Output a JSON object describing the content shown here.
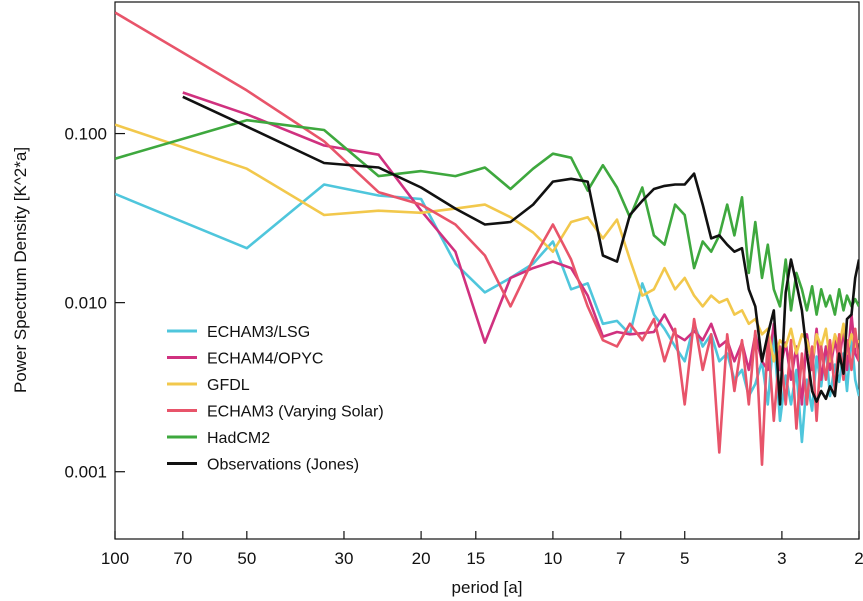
{
  "chart_data": {
    "type": "line",
    "title": "",
    "xlabel": "period [a]",
    "ylabel": "Power Spectrum Density [K^2*a]",
    "x_scale": "log",
    "x_reversed": true,
    "y_scale": "log",
    "xlim": [
      100,
      2
    ],
    "ylim": [
      0.0004,
      0.6
    ],
    "grid": false,
    "legend_position": "bottom-left",
    "x_ticks": [
      100,
      70,
      50,
      30,
      20,
      15,
      10,
      7,
      5,
      3,
      2
    ],
    "x_tick_labels": [
      "100",
      "70",
      "50",
      "30",
      "20",
      "15",
      "10",
      "7",
      "5",
      "3",
      "2"
    ],
    "y_ticks": [
      0.1,
      0.01,
      0.001
    ],
    "y_tick_labels": [
      "0.100",
      "0.010",
      "0.001"
    ],
    "series": [
      {
        "name": "ECHAM3/LSG",
        "color": "#4fc6dc",
        "points": [
          [
            100,
            0.044
          ],
          [
            50,
            0.021
          ],
          [
            33.3,
            0.05
          ],
          [
            25,
            0.043
          ],
          [
            20,
            0.041
          ],
          [
            16.7,
            0.017
          ],
          [
            14.3,
            0.0115
          ],
          [
            12.5,
            0.014
          ],
          [
            11.1,
            0.017
          ],
          [
            10,
            0.023
          ],
          [
            9.09,
            0.012
          ],
          [
            8.33,
            0.013
          ],
          [
            7.69,
            0.0075
          ],
          [
            7.14,
            0.0078
          ],
          [
            6.67,
            0.0065
          ],
          [
            6.25,
            0.013
          ],
          [
            5.88,
            0.0085
          ],
          [
            5.56,
            0.007
          ],
          [
            5.26,
            0.0055
          ],
          [
            5,
            0.0045
          ],
          [
            4.76,
            0.0075
          ],
          [
            4.55,
            0.0055
          ],
          [
            4.35,
            0.0065
          ],
          [
            4.17,
            0.0045
          ],
          [
            4,
            0.005
          ],
          [
            3.85,
            0.0035
          ],
          [
            3.7,
            0.004
          ],
          [
            3.57,
            0.0028
          ],
          [
            3.45,
            0.0033
          ],
          [
            3.33,
            0.0045
          ],
          [
            3.23,
            0.0025
          ],
          [
            3.13,
            0.0065
          ],
          [
            3.03,
            0.002
          ],
          [
            2.94,
            0.0037
          ],
          [
            2.86,
            0.0025
          ],
          [
            2.78,
            0.004
          ],
          [
            2.7,
            0.0015
          ],
          [
            2.63,
            0.0035
          ],
          [
            2.56,
            0.0023
          ],
          [
            2.5,
            0.0048
          ],
          [
            2.44,
            0.0032
          ],
          [
            2.38,
            0.0055
          ],
          [
            2.33,
            0.0028
          ],
          [
            2.27,
            0.0043
          ],
          [
            2.22,
            0.0034
          ],
          [
            2.17,
            0.005
          ],
          [
            2.13,
            0.003
          ],
          [
            2.08,
            0.0065
          ],
          [
            2.04,
            0.0035
          ],
          [
            2,
            0.0028
          ]
        ]
      },
      {
        "name": "ECHAM4/OPYC",
        "color": "#d0317f",
        "points": [
          [
            70,
            0.175
          ],
          [
            50,
            0.13
          ],
          [
            33.3,
            0.085
          ],
          [
            25,
            0.075
          ],
          [
            20,
            0.035
          ],
          [
            16.7,
            0.02
          ],
          [
            14.3,
            0.0058
          ],
          [
            12.5,
            0.014
          ],
          [
            11.1,
            0.016
          ],
          [
            10,
            0.0175
          ],
          [
            9.09,
            0.016
          ],
          [
            8.33,
            0.011
          ],
          [
            7.69,
            0.0063
          ],
          [
            7.14,
            0.0067
          ],
          [
            6.67,
            0.0065
          ],
          [
            6.25,
            0.0066
          ],
          [
            5.88,
            0.0067
          ],
          [
            5.56,
            0.0085
          ],
          [
            5.26,
            0.0065
          ],
          [
            5,
            0.006
          ],
          [
            4.76,
            0.0068
          ],
          [
            4.55,
            0.006
          ],
          [
            4.35,
            0.0075
          ],
          [
            4.17,
            0.0055
          ],
          [
            4,
            0.006
          ],
          [
            3.85,
            0.0045
          ],
          [
            3.7,
            0.0058
          ],
          [
            3.57,
            0.004
          ],
          [
            3.45,
            0.0065
          ],
          [
            3.33,
            0.0045
          ],
          [
            3.23,
            0.004
          ],
          [
            3.13,
            0.0075
          ],
          [
            3.03,
            0.004
          ],
          [
            2.94,
            0.0058
          ],
          [
            2.86,
            0.0035
          ],
          [
            2.78,
            0.0055
          ],
          [
            2.7,
            0.0025
          ],
          [
            2.63,
            0.0065
          ],
          [
            2.56,
            0.004
          ],
          [
            2.5,
            0.007
          ],
          [
            2.44,
            0.0035
          ],
          [
            2.38,
            0.0055
          ],
          [
            2.33,
            0.004
          ],
          [
            2.27,
            0.006
          ],
          [
            2.22,
            0.0045
          ],
          [
            2.17,
            0.007
          ],
          [
            2.13,
            0.004
          ],
          [
            2.08,
            0.0085
          ],
          [
            2.04,
            0.005
          ],
          [
            2,
            0.0045
          ]
        ]
      },
      {
        "name": "GFDL",
        "color": "#f2c84c",
        "points": [
          [
            100,
            0.113
          ],
          [
            50,
            0.062
          ],
          [
            33.3,
            0.033
          ],
          [
            25,
            0.035
          ],
          [
            20,
            0.034
          ],
          [
            16.7,
            0.036
          ],
          [
            14.3,
            0.038
          ],
          [
            12.5,
            0.032
          ],
          [
            11.1,
            0.026
          ],
          [
            10,
            0.02
          ],
          [
            9.09,
            0.03
          ],
          [
            8.33,
            0.032
          ],
          [
            7.69,
            0.024
          ],
          [
            7.14,
            0.031
          ],
          [
            6.67,
            0.018
          ],
          [
            6.25,
            0.011
          ],
          [
            5.88,
            0.012
          ],
          [
            5.56,
            0.016
          ],
          [
            5.26,
            0.012
          ],
          [
            5,
            0.014
          ],
          [
            4.76,
            0.011
          ],
          [
            4.55,
            0.0095
          ],
          [
            4.35,
            0.011
          ],
          [
            4.17,
            0.01
          ],
          [
            4,
            0.0105
          ],
          [
            3.85,
            0.0085
          ],
          [
            3.7,
            0.009
          ],
          [
            3.57,
            0.0075
          ],
          [
            3.45,
            0.008
          ],
          [
            3.33,
            0.0065
          ],
          [
            3.23,
            0.007
          ],
          [
            3.13,
            0.0045
          ],
          [
            3.03,
            0.006
          ],
          [
            2.94,
            0.0055
          ],
          [
            2.86,
            0.007
          ],
          [
            2.78,
            0.005
          ],
          [
            2.7,
            0.0065
          ],
          [
            2.63,
            0.006
          ],
          [
            2.56,
            0.0045
          ],
          [
            2.5,
            0.0065
          ],
          [
            2.44,
            0.0055
          ],
          [
            2.38,
            0.007
          ],
          [
            2.33,
            0.0045
          ],
          [
            2.27,
            0.0065
          ],
          [
            2.22,
            0.0055
          ],
          [
            2.17,
            0.0075
          ],
          [
            2.13,
            0.005
          ],
          [
            2.08,
            0.0065
          ],
          [
            2.04,
            0.0055
          ],
          [
            2,
            0.006
          ]
        ]
      },
      {
        "name": "ECHAM3 (Varying Solar)",
        "color": "#e8546a",
        "points": [
          [
            100,
            0.52
          ],
          [
            50,
            0.18
          ],
          [
            33.3,
            0.09
          ],
          [
            25,
            0.045
          ],
          [
            20,
            0.038
          ],
          [
            16.7,
            0.029
          ],
          [
            14.3,
            0.019
          ],
          [
            12.5,
            0.0095
          ],
          [
            11.1,
            0.018
          ],
          [
            10,
            0.029
          ],
          [
            9.09,
            0.018
          ],
          [
            8.33,
            0.0095
          ],
          [
            7.69,
            0.006
          ],
          [
            7.14,
            0.0055
          ],
          [
            6.67,
            0.0075
          ],
          [
            6.25,
            0.006
          ],
          [
            5.88,
            0.008
          ],
          [
            5.56,
            0.0045
          ],
          [
            5.26,
            0.007
          ],
          [
            5,
            0.0025
          ],
          [
            4.76,
            0.008
          ],
          [
            4.55,
            0.004
          ],
          [
            4.35,
            0.0065
          ],
          [
            4.17,
            0.0013
          ],
          [
            4,
            0.0065
          ],
          [
            3.85,
            0.003
          ],
          [
            3.7,
            0.006
          ],
          [
            3.57,
            0.0025
          ],
          [
            3.45,
            0.0068
          ],
          [
            3.33,
            0.0011
          ],
          [
            3.23,
            0.0065
          ],
          [
            3.13,
            0.002
          ],
          [
            3.03,
            0.0055
          ],
          [
            2.94,
            0.0025
          ],
          [
            2.86,
            0.006
          ],
          [
            2.78,
            0.0018
          ],
          [
            2.7,
            0.005
          ],
          [
            2.63,
            0.0025
          ],
          [
            2.56,
            0.0055
          ],
          [
            2.5,
            0.002
          ],
          [
            2.44,
            0.0055
          ],
          [
            2.38,
            0.0035
          ],
          [
            2.33,
            0.006
          ],
          [
            2.27,
            0.003
          ],
          [
            2.22,
            0.0065
          ],
          [
            2.17,
            0.0035
          ],
          [
            2.13,
            0.006
          ],
          [
            2.08,
            0.004
          ],
          [
            2.04,
            0.007
          ],
          [
            2,
            0.0045
          ]
        ]
      },
      {
        "name": "HadCM2",
        "color": "#3ea83e",
        "points": [
          [
            100,
            0.071
          ],
          [
            50,
            0.12
          ],
          [
            33.3,
            0.105
          ],
          [
            25,
            0.056
          ],
          [
            20,
            0.06
          ],
          [
            16.7,
            0.056
          ],
          [
            14.3,
            0.063
          ],
          [
            12.5,
            0.047
          ],
          [
            11.1,
            0.062
          ],
          [
            10,
            0.076
          ],
          [
            9.09,
            0.072
          ],
          [
            8.33,
            0.046
          ],
          [
            7.69,
            0.065
          ],
          [
            7.14,
            0.048
          ],
          [
            6.67,
            0.032
          ],
          [
            6.25,
            0.048
          ],
          [
            5.88,
            0.025
          ],
          [
            5.56,
            0.022
          ],
          [
            5.26,
            0.038
          ],
          [
            5,
            0.033
          ],
          [
            4.76,
            0.016
          ],
          [
            4.55,
            0.023
          ],
          [
            4.35,
            0.02
          ],
          [
            4.17,
            0.025
          ],
          [
            4,
            0.038
          ],
          [
            3.85,
            0.025
          ],
          [
            3.7,
            0.042
          ],
          [
            3.57,
            0.015
          ],
          [
            3.45,
            0.03
          ],
          [
            3.33,
            0.014
          ],
          [
            3.23,
            0.022
          ],
          [
            3.13,
            0.012
          ],
          [
            3.03,
            0.0095
          ],
          [
            2.94,
            0.018
          ],
          [
            2.86,
            0.009
          ],
          [
            2.78,
            0.015
          ],
          [
            2.7,
            0.012
          ],
          [
            2.63,
            0.009
          ],
          [
            2.56,
            0.0125
          ],
          [
            2.5,
            0.0085
          ],
          [
            2.44,
            0.012
          ],
          [
            2.38,
            0.0095
          ],
          [
            2.33,
            0.011
          ],
          [
            2.27,
            0.0085
          ],
          [
            2.22,
            0.012
          ],
          [
            2.17,
            0.009
          ],
          [
            2.13,
            0.011
          ],
          [
            2.08,
            0.0095
          ],
          [
            2.04,
            0.0105
          ],
          [
            2,
            0.0095
          ]
        ]
      },
      {
        "name": "Observations (Jones)",
        "color": "#111111",
        "points": [
          [
            70,
            0.165
          ],
          [
            50,
            0.11
          ],
          [
            33.3,
            0.067
          ],
          [
            25,
            0.063
          ],
          [
            20,
            0.048
          ],
          [
            16.7,
            0.036
          ],
          [
            14.3,
            0.029
          ],
          [
            12.5,
            0.03
          ],
          [
            11.1,
            0.038
          ],
          [
            10,
            0.052
          ],
          [
            9.09,
            0.054
          ],
          [
            8.33,
            0.052
          ],
          [
            7.69,
            0.019
          ],
          [
            7.14,
            0.0175
          ],
          [
            6.67,
            0.033
          ],
          [
            6.25,
            0.04
          ],
          [
            5.88,
            0.047
          ],
          [
            5.56,
            0.049
          ],
          [
            5.26,
            0.05
          ],
          [
            5,
            0.05
          ],
          [
            4.76,
            0.058
          ],
          [
            4.55,
            0.038
          ],
          [
            4.35,
            0.024
          ],
          [
            4.17,
            0.025
          ],
          [
            4,
            0.022
          ],
          [
            3.85,
            0.02
          ],
          [
            3.7,
            0.021
          ],
          [
            3.57,
            0.012
          ],
          [
            3.45,
            0.0095
          ],
          [
            3.33,
            0.0045
          ],
          [
            3.23,
            0.0065
          ],
          [
            3.13,
            0.009
          ],
          [
            3.03,
            0.0025
          ],
          [
            2.94,
            0.0115
          ],
          [
            2.86,
            0.018
          ],
          [
            2.78,
            0.013
          ],
          [
            2.7,
            0.009
          ],
          [
            2.63,
            0.005
          ],
          [
            2.56,
            0.003
          ],
          [
            2.5,
            0.0026
          ],
          [
            2.44,
            0.003
          ],
          [
            2.38,
            0.0027
          ],
          [
            2.33,
            0.0032
          ],
          [
            2.27,
            0.0028
          ],
          [
            2.22,
            0.005
          ],
          [
            2.17,
            0.0038
          ],
          [
            2.13,
            0.008
          ],
          [
            2.08,
            0.0085
          ],
          [
            2.04,
            0.014
          ],
          [
            2,
            0.018
          ]
        ]
      }
    ]
  }
}
